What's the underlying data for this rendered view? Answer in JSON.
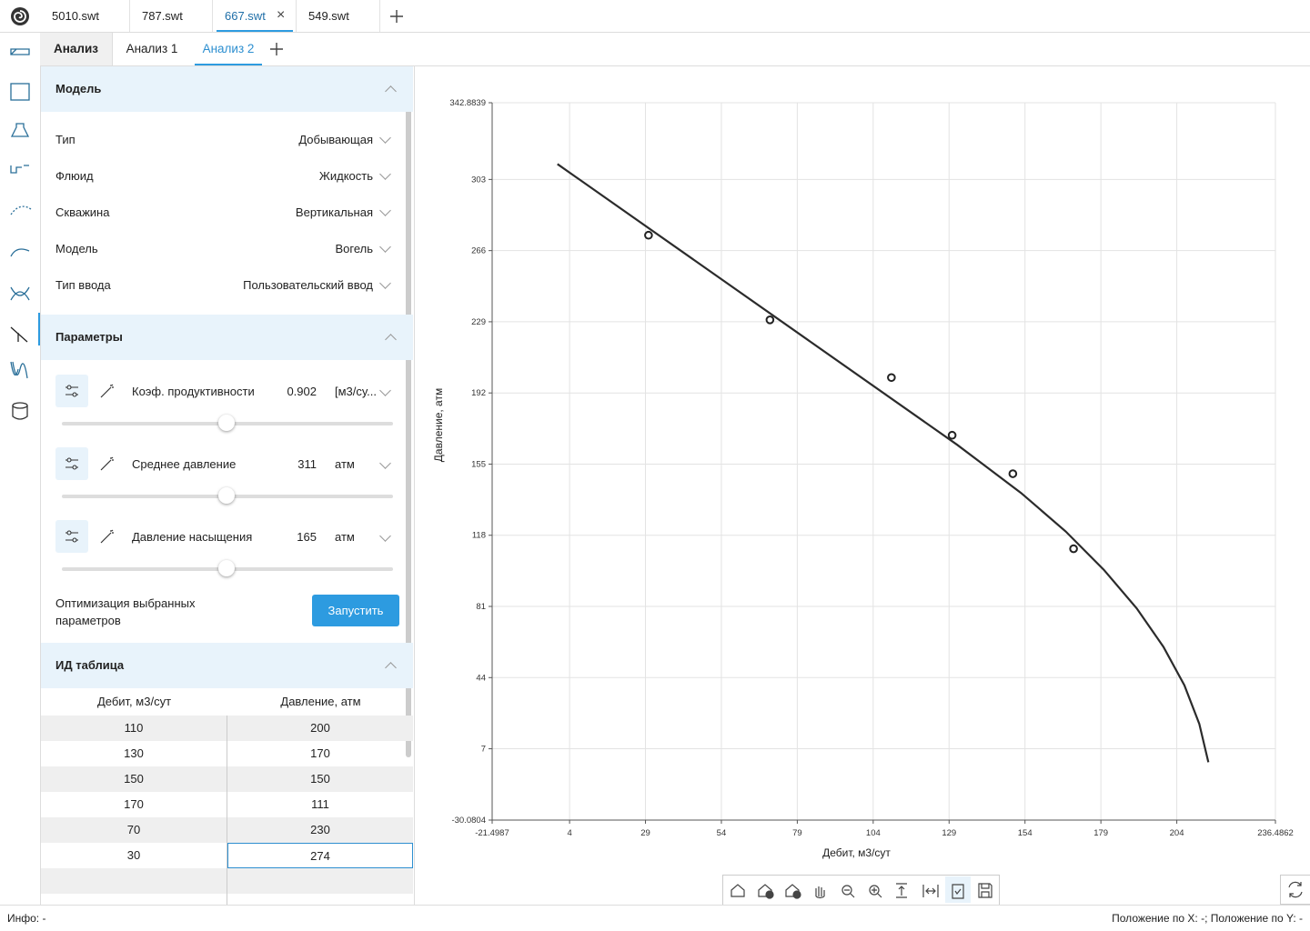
{
  "file_tabs": [
    "5010.swt",
    "787.swt",
    "667.swt",
    "549.swt"
  ],
  "analysis_tabs": [
    "Анализ",
    "Анализ 1",
    "Анализ 2"
  ],
  "model": {
    "title": "Модель",
    "rows": [
      {
        "label": "Тип",
        "value": "Добывающая"
      },
      {
        "label": "Флюид",
        "value": "Жидкость"
      },
      {
        "label": "Скважина",
        "value": "Вертикальная"
      },
      {
        "label": "Модель",
        "value": "Вогель"
      },
      {
        "label": "Тип ввода",
        "value": "Пользовательский ввод"
      }
    ]
  },
  "params": {
    "title": "Параметры",
    "items": [
      {
        "label": "Коэф. продуктивности",
        "value": 0.902,
        "unit": "[м3/су..."
      },
      {
        "label": "Среднее давление",
        "value": 311,
        "unit": "атм"
      },
      {
        "label": "Давление насыщения",
        "value": 165,
        "unit": "атм"
      }
    ],
    "optimize": "Оптимизация выбранных параметров",
    "run": "Запустить"
  },
  "table": {
    "title": "ИД таблица",
    "headers": [
      "Дебит, м3/сут",
      "Давление, атм"
    ],
    "rows": [
      [
        110,
        200
      ],
      [
        130,
        170
      ],
      [
        150,
        150
      ],
      [
        170,
        111
      ],
      [
        70,
        230
      ],
      [
        30,
        274
      ]
    ]
  },
  "chart_data": {
    "type": "scatter",
    "x_label": "Дебит, м3/сут",
    "y_label": "Давление, атм",
    "x": [
      30,
      70,
      110,
      130,
      150,
      170
    ],
    "y": [
      274,
      230,
      200,
      170,
      150,
      111
    ],
    "color": "#222222",
    "line": {
      "x": [
        0,
        131.7,
        152.7,
        167.4,
        180.0,
        190.8,
        199.6,
        206.5,
        211.4,
        214.4
      ],
      "y": [
        311,
        165,
        140,
        120,
        100,
        80,
        60,
        40,
        20,
        0
      ],
      "color": "#2b2b2b"
    },
    "xlim": [
      -21.4987,
      236.4862
    ],
    "xticks": [
      -21.4987,
      4,
      29,
      54,
      79,
      104,
      129,
      154,
      179,
      204,
      236.4862
    ],
    "ylim": [
      -30.0804,
      342.8839
    ],
    "yticks": [
      -30.0804,
      7,
      44,
      81,
      118,
      155,
      192,
      229,
      266,
      303,
      342.8839
    ],
    "grid": true
  },
  "status": {
    "info": "Инфо: -",
    "position": "Положение по X: -; Положение по Y: -"
  }
}
